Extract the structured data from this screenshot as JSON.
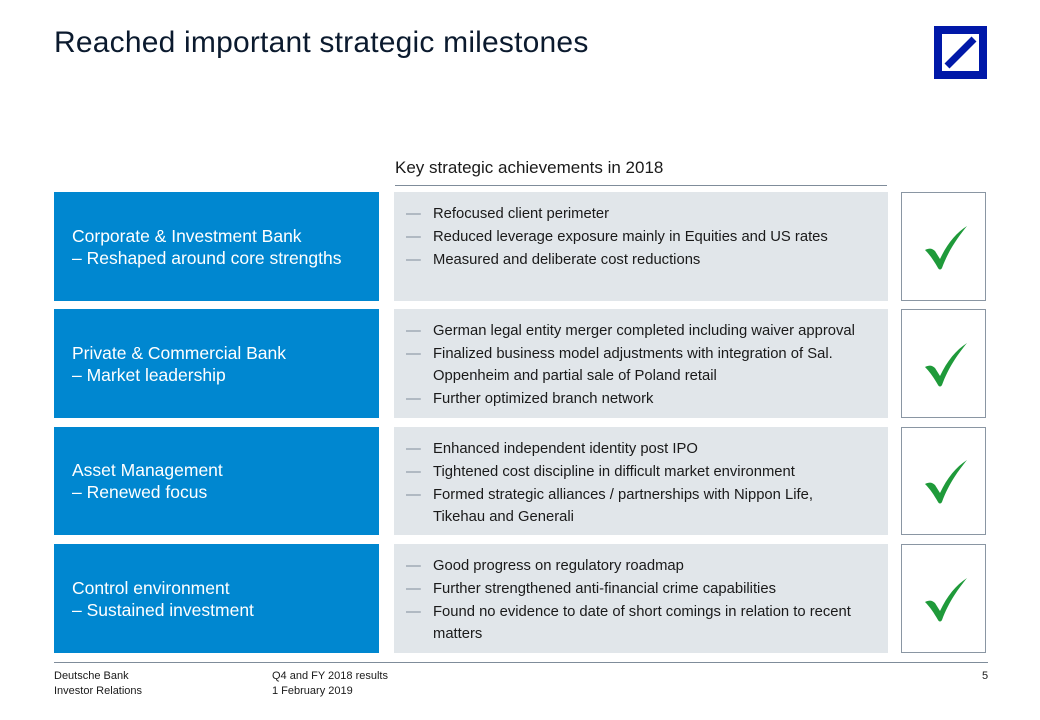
{
  "slide": {
    "title": "Reached important strategic milestones",
    "section_header": "Key strategic achievements in 2018",
    "page_number": "5"
  },
  "rows": [
    {
      "name": "Corporate & Investment Bank",
      "subtitle": "– Reshaped around core strengths",
      "bullets": [
        "Refocused client perimeter",
        "Reduced leverage exposure mainly in Equities and US rates",
        "Measured and deliberate cost reductions"
      ]
    },
    {
      "name": "Private & Commercial Bank",
      "subtitle": "– Market leadership",
      "bullets": [
        "German legal entity merger completed including waiver approval",
        "Finalized business model adjustments with integration of Sal. Oppenheim and partial sale of Poland retail",
        "Further optimized branch network"
      ]
    },
    {
      "name": "Asset Management",
      "subtitle": "– Renewed focus",
      "bullets": [
        "Enhanced independent identity post IPO",
        "Tightened cost discipline in difficult market environment",
        "Formed strategic alliances / partnerships with Nippon Life, Tikehau and Generali"
      ]
    },
    {
      "name": "Control environment",
      "subtitle": "– Sustained investment",
      "bullets": [
        "Good progress on regulatory roadmap",
        "Further strengthened anti-financial crime capabilities",
        "Found no evidence to date of short comings in relation to recent matters"
      ]
    }
  ],
  "footer": {
    "company": "Deutsche Bank",
    "department": "Investor Relations",
    "report": "Q4 and FY 2018 results",
    "date": "1 February 2019"
  },
  "colors": {
    "category_blue": "#0087d0",
    "panel_gray": "#e1e6ea",
    "check_green": "#1f9a3a",
    "logo_blue": "#0018a8"
  },
  "icons": {
    "check": "checkmark-icon",
    "bullet": "em-dash",
    "logo": "deutsche-bank-logo-icon"
  }
}
